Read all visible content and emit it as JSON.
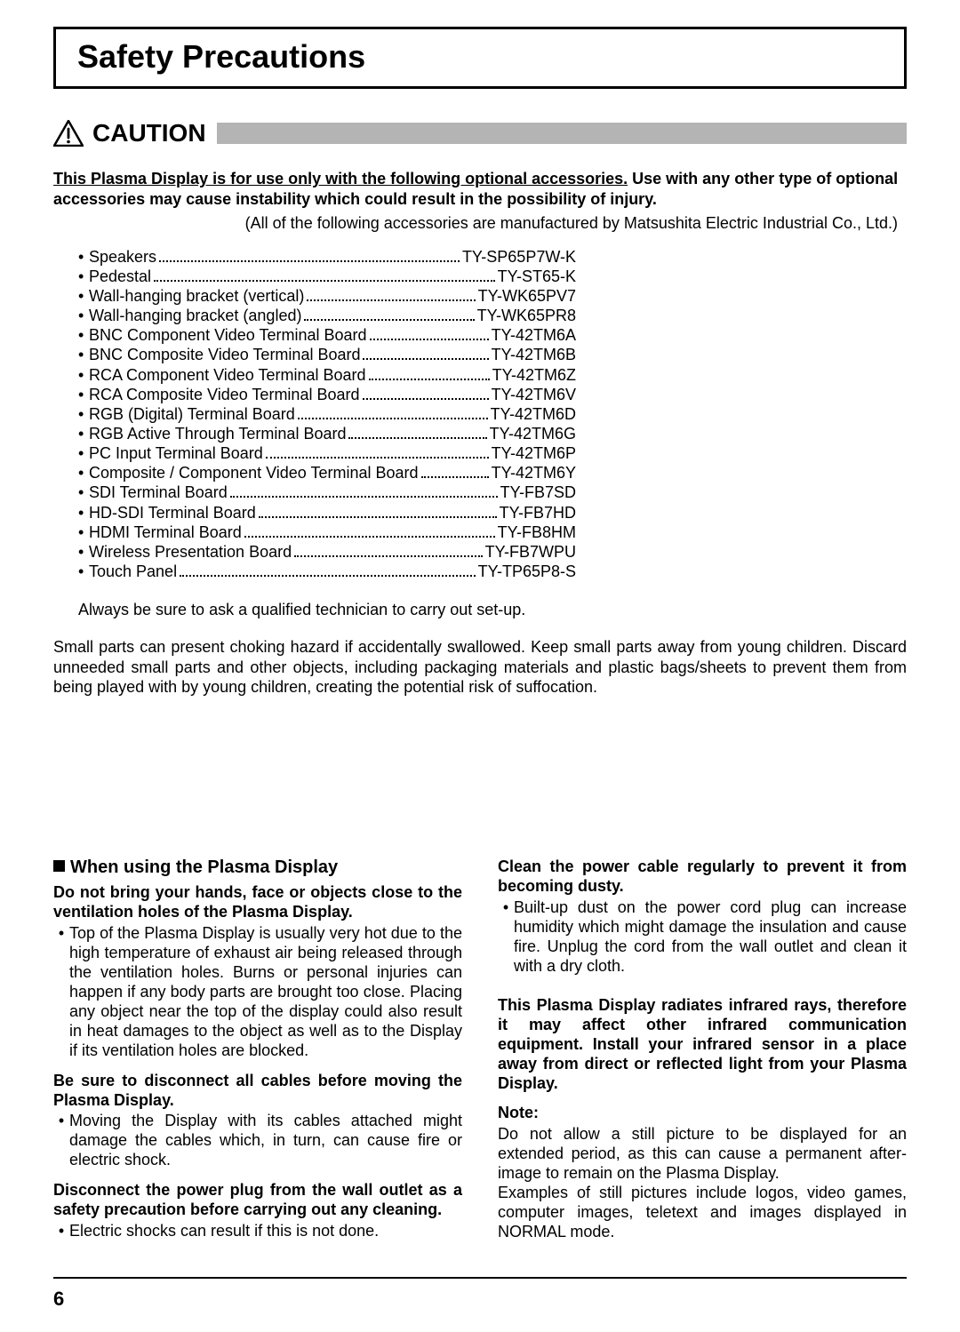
{
  "title": "Safety Precautions",
  "caution_label": "CAUTION",
  "intro_underlined": "This Plasma Display is for use only with the following optional accessories.",
  "intro_bold_rest": " Use with any other type of optional accessories may cause instability which could result in the possibility of injury.",
  "manufacturer_note": "(All of the following accessories are manufactured by Matsushita Electric Industrial Co., Ltd.)",
  "accessories": [
    {
      "label": "Speakers",
      "model": "TY-SP65P7W-K"
    },
    {
      "label": "Pedestal",
      "model": "TY-ST65-K"
    },
    {
      "label": "Wall-hanging bracket (vertical)",
      "model": "TY-WK65PV7"
    },
    {
      "label": "Wall-hanging bracket (angled)",
      "model": "TY-WK65PR8"
    },
    {
      "label": "BNC Component Video Terminal Board",
      "model": "TY-42TM6A"
    },
    {
      "label": "BNC Composite Video Terminal Board",
      "model": "TY-42TM6B"
    },
    {
      "label": "RCA Component Video Terminal Board",
      "model": "TY-42TM6Z"
    },
    {
      "label": "RCA Composite Video Terminal Board",
      "model": "TY-42TM6V"
    },
    {
      "label": "RGB (Digital) Terminal Board",
      "model": "TY-42TM6D"
    },
    {
      "label": "RGB Active Through Terminal Board",
      "model": "TY-42TM6G"
    },
    {
      "label": "PC Input Terminal Board",
      "model": "TY-42TM6P"
    },
    {
      "label": "Composite / Component Video Terminal Board",
      "model": "TY-42TM6Y"
    },
    {
      "label": "SDI Terminal Board",
      "model": "TY-FB7SD"
    },
    {
      "label": "HD-SDI Terminal Board",
      "model": "TY-FB7HD"
    },
    {
      "label": "HDMI Terminal Board",
      "model": "TY-FB8HM"
    },
    {
      "label": "Wireless Presentation Board",
      "model": "TY-FB7WPU"
    },
    {
      "label": "Touch Panel",
      "model": "TY-TP65P8-S"
    }
  ],
  "technician_note": "Always be sure to ask a qualified technician to carry out set-up.",
  "choking_note": "Small parts can present choking hazard if accidentally swallowed. Keep small parts away from young children. Discard unneeded small parts and other objects, including packaging materials and plastic bags/sheets to prevent them from being played with by young children, creating the potential risk of suffocation.",
  "section_heading": "When using the Plasma Display",
  "left": {
    "h1": "Do not bring your hands, face or objects close to the ventilation holes of the Plasma Display.",
    "b1": "Top of the Plasma Display is usually very hot due to the high temperature of exhaust air being released through the ventilation holes. Burns or personal injuries can happen if any body parts are brought too close. Placing any object near the top of the display could also result in heat damages to the object as well as to the Display if its ventilation holes are blocked.",
    "h2": "Be sure to disconnect all cables before moving the Plasma Display.",
    "b2": "Moving the Display with its cables attached might damage the cables which, in turn, can cause fire or electric shock.",
    "h3": "Disconnect the power plug from the wall outlet as a safety precaution before carrying out any cleaning.",
    "b3": "Electric shocks can result if this is not done."
  },
  "right": {
    "h1": "Clean the power cable regularly to prevent it from becoming dusty.",
    "b1": "Built-up dust on the power cord plug can increase humidity which might damage the insulation and cause fire. Unplug the cord from the wall outlet and clean it with a dry cloth.",
    "h2": "This Plasma Display radiates infrared rays, therefore it may affect other infrared communication equipment. Install your infrared sensor in a place away from direct or reflected light from your Plasma Display.",
    "note_label": "Note:",
    "note_body": "Do not allow a still picture to be displayed for an extended period, as this can cause a permanent after-image to remain on the Plasma Display.",
    "note_body2": "Examples of still pictures include logos, video games, computer images, teletext and images displayed in NORMAL mode."
  },
  "page_number": "6",
  "colors": {
    "bar": "#b4b4b4",
    "text": "#000000",
    "bg": "#ffffff"
  }
}
